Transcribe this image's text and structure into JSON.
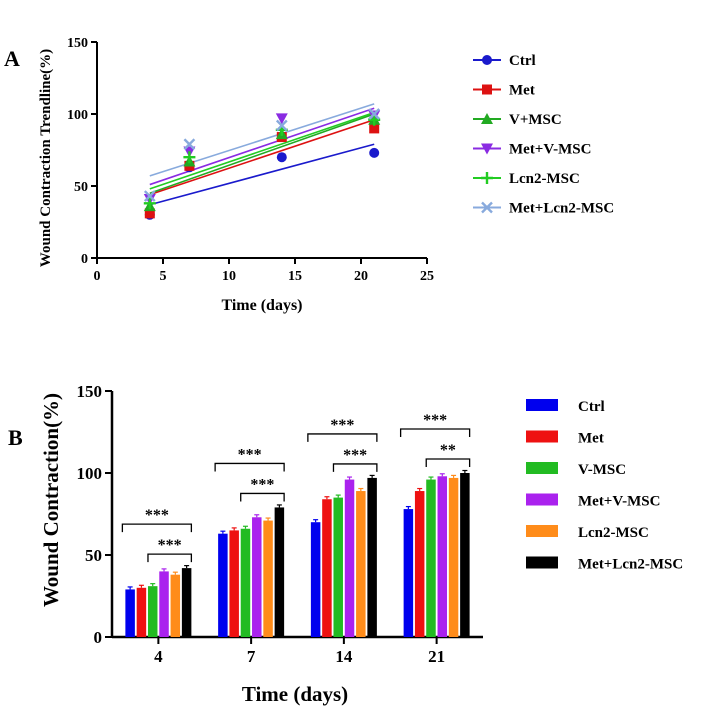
{
  "chart_data": [
    {
      "type": "scatter",
      "panel_label": "A",
      "xlabel": "Time (days)",
      "ylabel": "Wound Contraction Trendline(%)",
      "xlim": [
        0,
        25
      ],
      "ylim": [
        0,
        150
      ],
      "xticks": [
        "0",
        "5",
        "10",
        "15",
        "20",
        "25"
      ],
      "yticks": [
        "0",
        "50",
        "100",
        "150"
      ],
      "x": [
        4,
        7,
        14,
        21
      ],
      "series": [
        {
          "name": "Ctrl",
          "marker": "circle",
          "color": "#1a1acc",
          "values": [
            30,
            63,
            70,
            73
          ],
          "trend": [
            37,
            79
          ]
        },
        {
          "name": "Met",
          "marker": "square",
          "color": "#dd1111",
          "values": [
            31,
            64,
            84,
            90
          ],
          "trend": [
            44,
            96
          ]
        },
        {
          "name": "V+MSC",
          "marker": "triangle-up",
          "color": "#22aa22",
          "values": [
            36,
            67,
            86,
            96
          ],
          "trend": [
            45,
            100
          ]
        },
        {
          "name": "Met+V-MSC",
          "marker": "triangle-down",
          "color": "#8a2be2",
          "values": [
            41,
            74,
            97,
            99
          ],
          "trend": [
            51,
            104
          ]
        },
        {
          "name": "Lcn2-MSC",
          "marker": "plus",
          "color": "#22cc22",
          "values": [
            38,
            70,
            89,
            96
          ],
          "trend": [
            48,
            101
          ]
        },
        {
          "name": "Met+Lcn2-MSC",
          "marker": "cross",
          "color": "#88aadd",
          "values": [
            43,
            79,
            92,
            100
          ],
          "trend": [
            57,
            107
          ]
        }
      ]
    },
    {
      "type": "bar",
      "panel_label": "B",
      "xlabel": "Time (days)",
      "ylabel": "Wound Contraction(%)",
      "ylim": [
        0,
        150
      ],
      "yticks": [
        "0",
        "50",
        "100",
        "150"
      ],
      "categories": [
        "4",
        "7",
        "14",
        "21"
      ],
      "series": [
        {
          "name": "Ctrl",
          "color": "#0000ee",
          "values": [
            29,
            63,
            70,
            78
          ]
        },
        {
          "name": "Met",
          "color": "#ee1111",
          "values": [
            30,
            65,
            84,
            89
          ]
        },
        {
          "name": "V-MSC",
          "color": "#22bb22",
          "values": [
            31,
            66,
            85,
            96
          ]
        },
        {
          "name": "Met+V-MSC",
          "color": "#aa22ee",
          "values": [
            40,
            73,
            96,
            98
          ]
        },
        {
          "name": "Lcn2-MSC",
          "color": "#ff8c1a",
          "values": [
            38,
            71,
            89,
            97
          ]
        },
        {
          "name": "Met+Lcn2-MSC",
          "color": "#000000",
          "values": [
            42,
            79,
            97,
            100
          ]
        }
      ],
      "significance": [
        {
          "category": 0,
          "from": 0,
          "to": 5,
          "label": "***"
        },
        {
          "category": 0,
          "from": 2,
          "to": 5,
          "label": "***"
        },
        {
          "category": 1,
          "from": 0,
          "to": 5,
          "label": "***"
        },
        {
          "category": 1,
          "from": 2,
          "to": 5,
          "label": "***"
        },
        {
          "category": 2,
          "from": 0,
          "to": 5,
          "label": "***"
        },
        {
          "category": 2,
          "from": 2,
          "to": 5,
          "label": "***"
        },
        {
          "category": 3,
          "from": 0,
          "to": 5,
          "label": "***"
        },
        {
          "category": 3,
          "from": 2,
          "to": 5,
          "label": "**"
        }
      ]
    }
  ]
}
